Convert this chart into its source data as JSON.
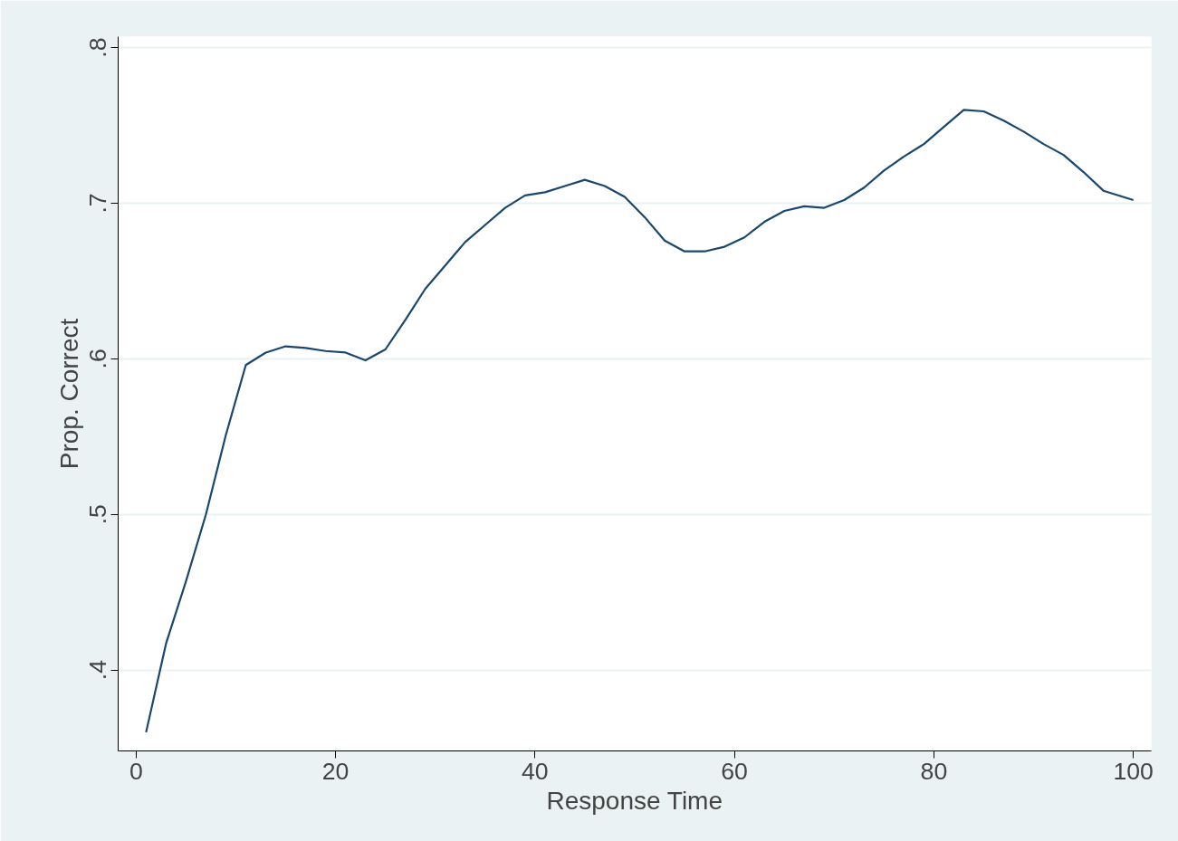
{
  "chart_data": {
    "type": "line",
    "xlabel": "Response Time",
    "ylabel": "Prop. Correct",
    "grid": "y",
    "marker": "none",
    "line_style": "solid",
    "xlim": [
      -1.8,
      101.8
    ],
    "ylim": [
      0.348,
      0.807
    ],
    "xticks": [
      0,
      20,
      40,
      60,
      80,
      100
    ],
    "yticks": [
      {
        "value": 0.4,
        "label": ".4"
      },
      {
        "value": 0.5,
        "label": ".5"
      },
      {
        "value": 0.6,
        "label": ".6"
      },
      {
        "value": 0.7,
        "label": ".7"
      },
      {
        "value": 0.8,
        "label": ".8"
      }
    ],
    "series": [
      {
        "color": "#1a476f",
        "x": [
          1,
          3,
          5,
          7,
          9,
          11,
          13,
          15,
          17,
          19,
          21,
          23,
          25,
          27,
          29,
          31,
          33,
          35,
          37,
          39,
          41,
          43,
          45,
          47,
          49,
          51,
          53,
          55,
          57,
          59,
          61,
          63,
          65,
          67,
          69,
          71,
          73,
          75,
          77,
          79,
          81,
          83,
          85,
          87,
          89,
          91,
          93,
          95,
          97,
          100
        ],
        "values": [
          0.36,
          0.417,
          0.457,
          0.5,
          0.551,
          0.596,
          0.604,
          0.608,
          0.607,
          0.605,
          0.604,
          0.599,
          0.606,
          0.625,
          0.645,
          0.66,
          0.675,
          0.686,
          0.697,
          0.705,
          0.707,
          0.711,
          0.715,
          0.711,
          0.704,
          0.691,
          0.676,
          0.669,
          0.669,
          0.672,
          0.678,
          0.688,
          0.695,
          0.698,
          0.697,
          0.702,
          0.71,
          0.721,
          0.73,
          0.738,
          0.749,
          0.76,
          0.759,
          0.753,
          0.746,
          0.738,
          0.731,
          0.72,
          0.708,
          0.702
        ]
      }
    ]
  }
}
